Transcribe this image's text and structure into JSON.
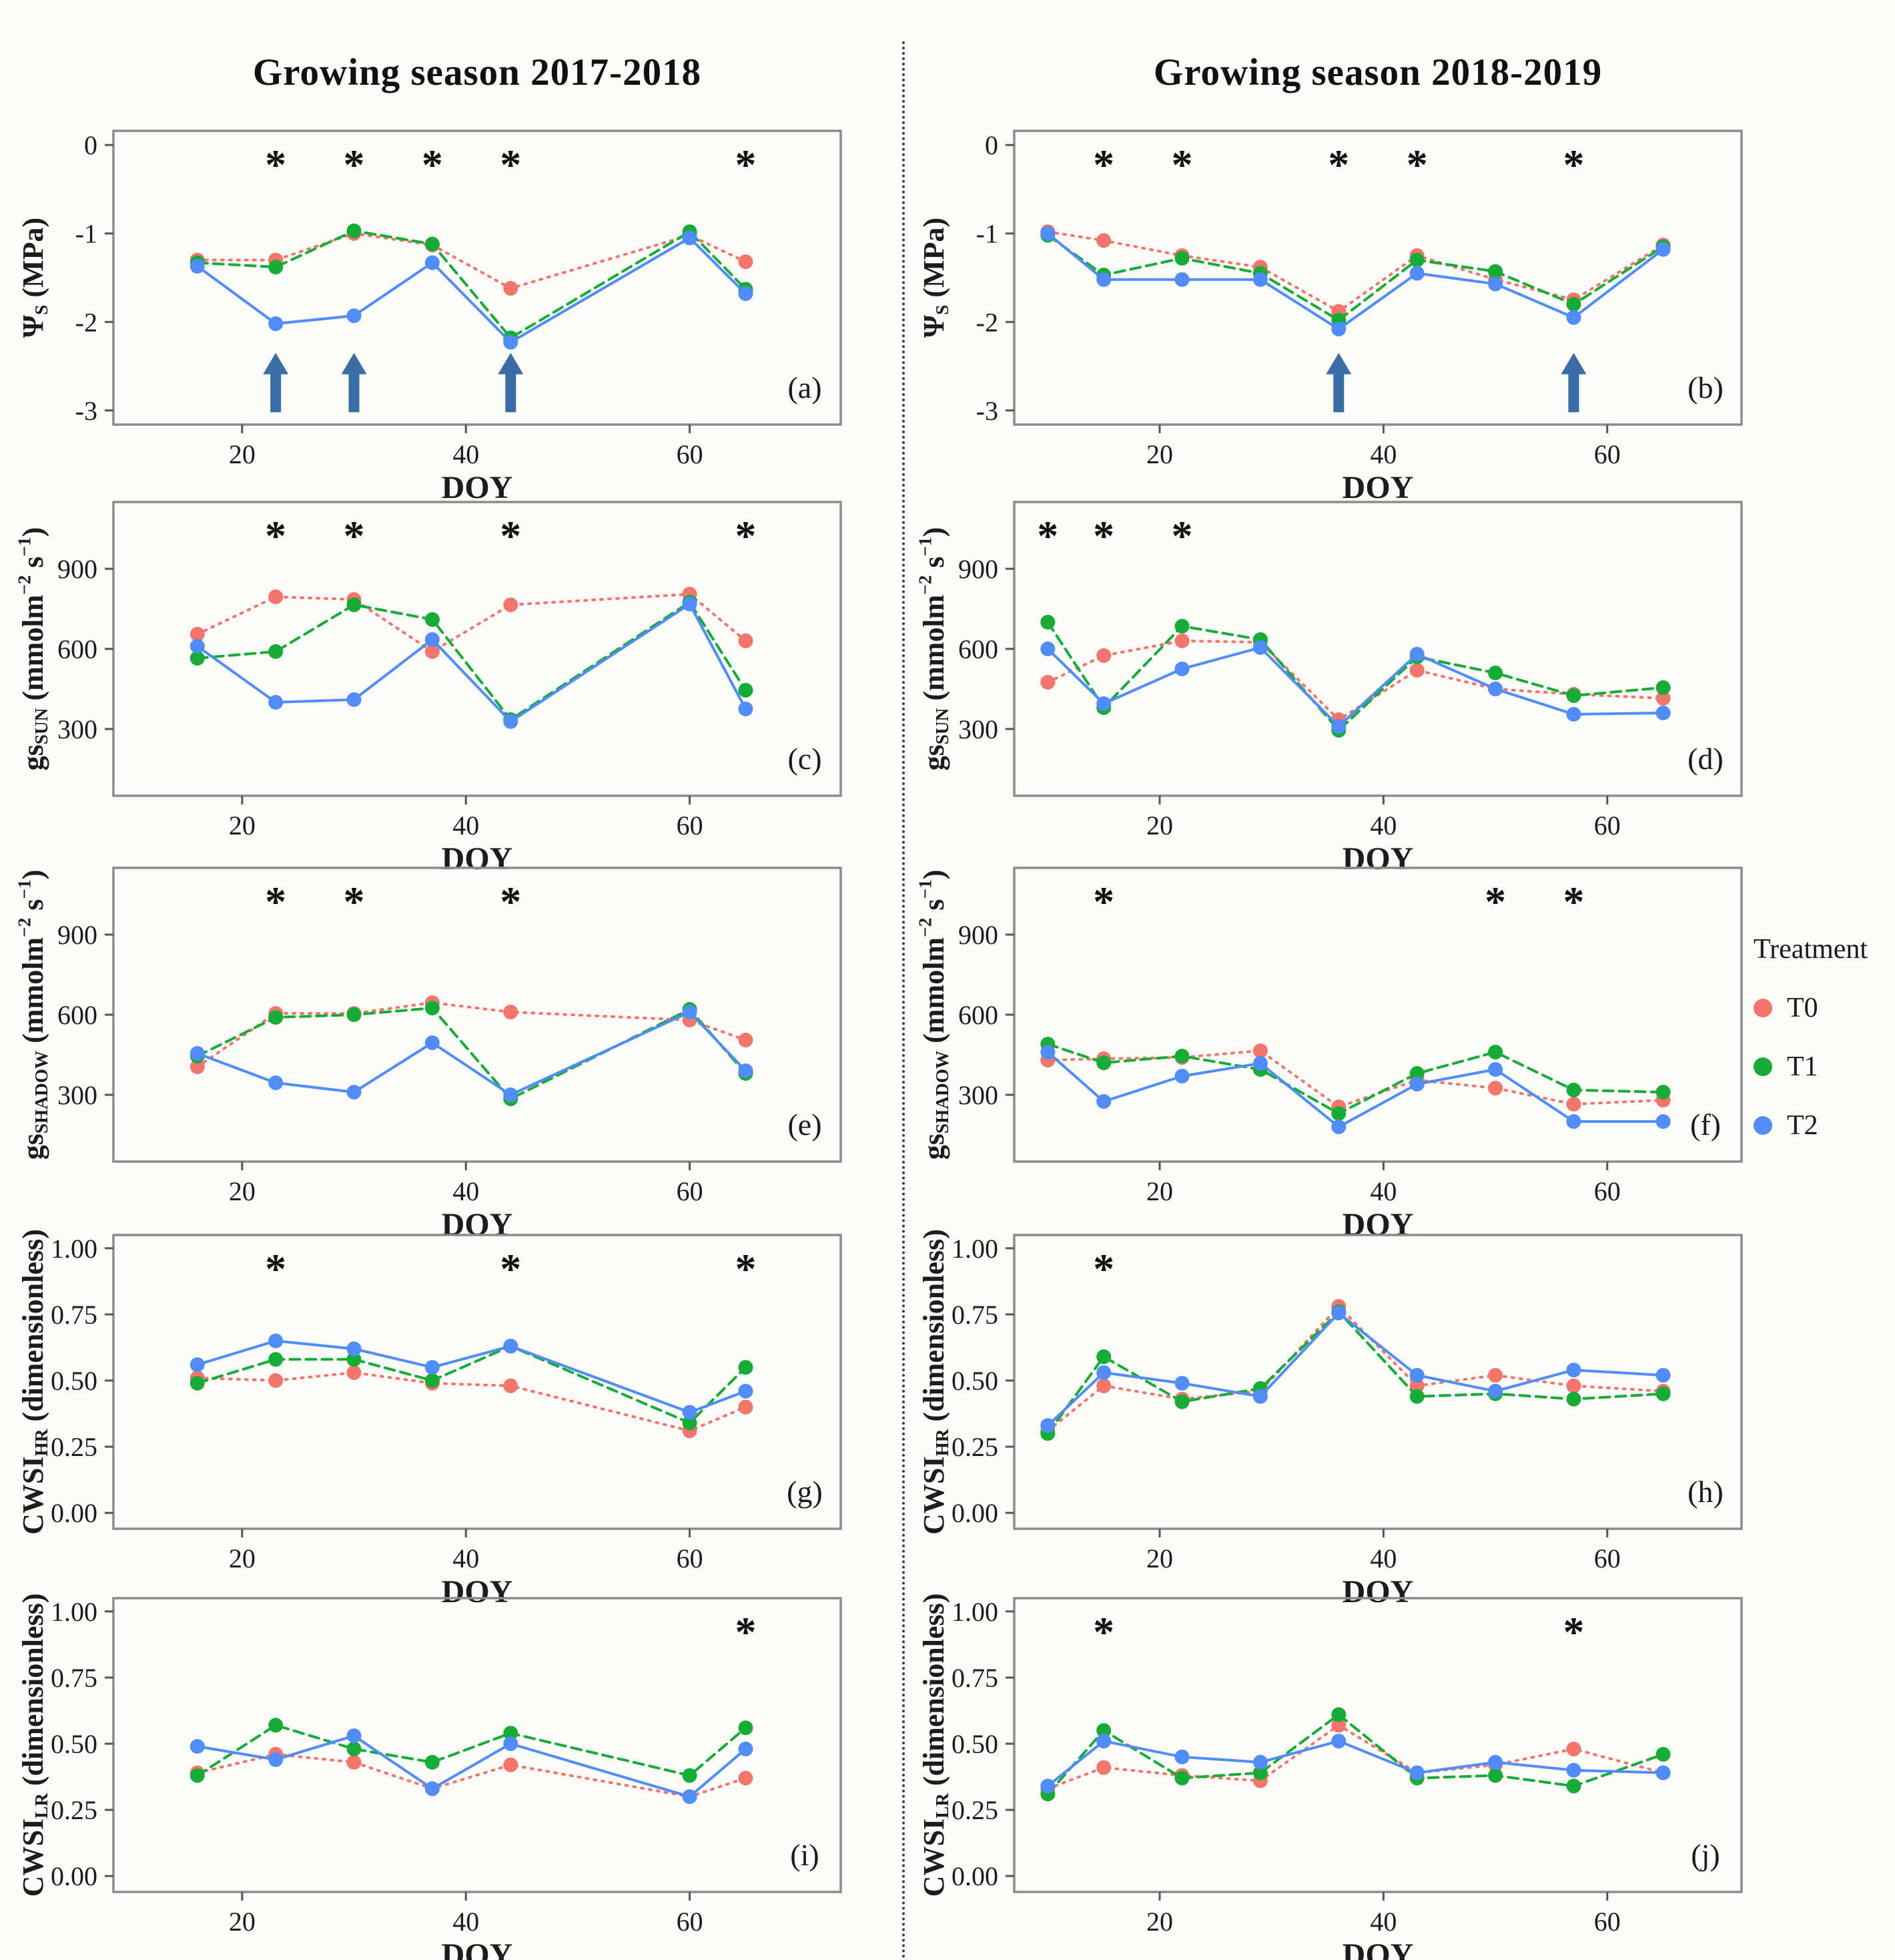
{
  "titles": {
    "left": "Growing season 2017-2018",
    "right": "Growing season 2018-2019"
  },
  "legend": {
    "title": "Treatment",
    "items": [
      {
        "label": "T0"
      },
      {
        "label": "T1"
      },
      {
        "label": "T2"
      }
    ]
  },
  "colors": {
    "T0": "#F3756B",
    "T1": "#16AC36",
    "T2": "#518DF8",
    "arrow": "#3B6DA5",
    "frame": "#8c8c8c",
    "axis_text": "#1c1c1c",
    "asterisk": "#111111"
  },
  "axis": {
    "x_label": "DOY"
  },
  "chart_data": {
    "type": "line",
    "series_names": [
      "T0",
      "T1",
      "T2"
    ],
    "x_ticks": [
      20,
      40,
      60
    ],
    "panels": [
      {
        "id": "a",
        "label": "(a)",
        "row": 1,
        "col": "left",
        "season": "2017-2018",
        "ylabel": "Ψ_S_ (MPa)",
        "y_range": [
          -3.16,
          0.16
        ],
        "y_ticks": [
          {
            "value": 0,
            "label": "0"
          },
          {
            "value": -1,
            "label": "-1"
          },
          {
            "value": -2,
            "label": "-2"
          },
          {
            "value": -3,
            "label": "-3"
          }
        ],
        "x_range": [
          8.5,
          73.5
        ],
        "x": [
          16,
          23,
          30,
          37,
          44,
          60,
          65
        ],
        "series": {
          "T0": [
            -1.3,
            -1.3,
            -1.0,
            -1.13,
            -1.62,
            -1.02,
            -1.32
          ],
          "T1": [
            -1.33,
            -1.38,
            -0.97,
            -1.12,
            -2.18,
            -0.98,
            -1.63
          ],
          "T2": [
            -1.37,
            -2.02,
            -1.93,
            -1.33,
            -2.23,
            -1.05,
            -1.68
          ]
        },
        "asterisks_x": [
          23,
          30,
          37,
          44,
          65
        ],
        "arrows_x": [
          23,
          30,
          44
        ]
      },
      {
        "id": "b",
        "label": "(b)",
        "row": 1,
        "col": "right",
        "season": "2018-2019",
        "ylabel": "Ψ_S_ (MPa)",
        "y_range": [
          -3.16,
          0.16
        ],
        "y_ticks": [
          {
            "value": 0,
            "label": "0"
          },
          {
            "value": -1,
            "label": "-1"
          },
          {
            "value": -2,
            "label": "-2"
          },
          {
            "value": -3,
            "label": "-3"
          }
        ],
        "x_range": [
          7,
          72
        ],
        "x": [
          10,
          15,
          22,
          29,
          36,
          43,
          50,
          57,
          65
        ],
        "series": {
          "T0": [
            -0.98,
            -1.08,
            -1.25,
            -1.38,
            -1.88,
            -1.25,
            -1.52,
            -1.75,
            -1.13
          ],
          "T1": [
            -1.02,
            -1.47,
            -1.28,
            -1.45,
            -1.98,
            -1.3,
            -1.43,
            -1.8,
            -1.15
          ],
          "T2": [
            -1.0,
            -1.52,
            -1.52,
            -1.52,
            -2.08,
            -1.45,
            -1.57,
            -1.95,
            -1.18
          ]
        },
        "asterisks_x": [
          15,
          22,
          36,
          43,
          57
        ],
        "arrows_x": [
          36,
          57
        ]
      },
      {
        "id": "c",
        "label": "(c)",
        "row": 2,
        "col": "left",
        "season": "2017-2018",
        "ylabel": "gs_SUN_ (mmolm^−2^ s^−1^)",
        "y_range": [
          50,
          1150
        ],
        "y_ticks": [
          {
            "value": 900,
            "label": "900"
          },
          {
            "value": 600,
            "label": "600"
          },
          {
            "value": 300,
            "label": "300"
          }
        ],
        "x_range": [
          8.5,
          73.5
        ],
        "x": [
          16,
          23,
          30,
          37,
          44,
          60,
          65
        ],
        "series": {
          "T0": [
            655,
            795,
            785,
            590,
            765,
            805,
            630
          ],
          "T1": [
            565,
            590,
            765,
            710,
            335,
            775,
            445
          ],
          "T2": [
            610,
            400,
            410,
            635,
            328,
            768,
            375
          ]
        },
        "asterisks_x": [
          23,
          30,
          44,
          65
        ],
        "arrows_x": []
      },
      {
        "id": "d",
        "label": "(d)",
        "row": 2,
        "col": "right",
        "season": "2018-2019",
        "ylabel": "gs_SUN_ (mmolm^−2^ s^−1^)",
        "y_range": [
          50,
          1150
        ],
        "y_ticks": [
          {
            "value": 900,
            "label": "900"
          },
          {
            "value": 600,
            "label": "600"
          },
          {
            "value": 300,
            "label": "300"
          }
        ],
        "x_range": [
          7,
          72
        ],
        "x": [
          10,
          15,
          22,
          29,
          36,
          43,
          50,
          57,
          65
        ],
        "series": {
          "T0": [
            475,
            575,
            630,
            625,
            335,
            520,
            450,
            430,
            415
          ],
          "T1": [
            700,
            380,
            685,
            635,
            295,
            570,
            510,
            425,
            455
          ],
          "T2": [
            600,
            395,
            525,
            605,
            310,
            580,
            450,
            355,
            360
          ]
        },
        "asterisks_x": [
          10,
          15,
          22
        ],
        "arrows_x": []
      },
      {
        "id": "e",
        "label": "(e)",
        "row": 3,
        "col": "left",
        "season": "2017-2018",
        "ylabel": "gs_SHADOW_ (mmolm^−2^ s^−1^)",
        "y_range": [
          50,
          1150
        ],
        "y_ticks": [
          {
            "value": 900,
            "label": "900"
          },
          {
            "value": 600,
            "label": "600"
          },
          {
            "value": 300,
            "label": "300"
          }
        ],
        "x_range": [
          8.5,
          73.5
        ],
        "x": [
          16,
          23,
          30,
          37,
          44,
          60,
          65
        ],
        "series": {
          "T0": [
            405,
            605,
            605,
            645,
            610,
            580,
            505
          ],
          "T1": [
            445,
            590,
            600,
            625,
            285,
            620,
            380
          ],
          "T2": [
            455,
            345,
            310,
            495,
            300,
            610,
            390
          ]
        },
        "asterisks_x": [
          23,
          30,
          44
        ],
        "arrows_x": []
      },
      {
        "id": "f",
        "label": "(f)",
        "row": 3,
        "col": "right",
        "season": "2018-2019",
        "ylabel": "gs_SHADOW_ (mmolm^−2^ s^−1^)",
        "y_range": [
          50,
          1150
        ],
        "y_ticks": [
          {
            "value": 900,
            "label": "900"
          },
          {
            "value": 600,
            "label": "600"
          },
          {
            "value": 300,
            "label": "300"
          }
        ],
        "x_range": [
          7,
          72
        ],
        "x": [
          10,
          15,
          22,
          29,
          36,
          43,
          50,
          57,
          65
        ],
        "series": {
          "T0": [
            430,
            435,
            440,
            465,
            255,
            355,
            325,
            265,
            280
          ],
          "T1": [
            490,
            420,
            445,
            395,
            230,
            380,
            460,
            318,
            310
          ],
          "T2": [
            460,
            275,
            370,
            418,
            180,
            340,
            395,
            200,
            200
          ]
        },
        "asterisks_x": [
          15,
          50,
          57
        ],
        "arrows_x": []
      },
      {
        "id": "g",
        "label": "(g)",
        "row": 4,
        "col": "left",
        "season": "2017-2018",
        "ylabel": "CWSI_HR_ (dimensionless)",
        "y_range": [
          -0.06,
          1.05
        ],
        "y_ticks": [
          {
            "value": 1.0,
            "label": "1.00"
          },
          {
            "value": 0.75,
            "label": "0.75"
          },
          {
            "value": 0.5,
            "label": "0.50"
          },
          {
            "value": 0.25,
            "label": "0.25"
          },
          {
            "value": 0.0,
            "label": "0.00"
          }
        ],
        "x_range": [
          8.5,
          73.5
        ],
        "x": [
          16,
          23,
          30,
          37,
          44,
          60,
          65
        ],
        "series": {
          "T0": [
            0.51,
            0.5,
            0.53,
            0.49,
            0.48,
            0.31,
            0.4
          ],
          "T1": [
            0.49,
            0.58,
            0.58,
            0.5,
            0.63,
            0.34,
            0.55
          ],
          "T2": [
            0.56,
            0.65,
            0.62,
            0.55,
            0.63,
            0.38,
            0.46
          ]
        },
        "asterisks_x": [
          23,
          44,
          65
        ],
        "arrows_x": []
      },
      {
        "id": "h",
        "label": "(h)",
        "row": 4,
        "col": "right",
        "season": "2018-2019",
        "ylabel": "CWSI_HR_ (dimensionless)",
        "y_range": [
          -0.06,
          1.05
        ],
        "y_ticks": [
          {
            "value": 1.0,
            "label": "1.00"
          },
          {
            "value": 0.75,
            "label": "0.75"
          },
          {
            "value": 0.5,
            "label": "0.50"
          },
          {
            "value": 0.25,
            "label": "0.25"
          },
          {
            "value": 0.0,
            "label": "0.00"
          }
        ],
        "x_range": [
          7,
          72
        ],
        "x": [
          10,
          15,
          22,
          29,
          36,
          43,
          50,
          57,
          65
        ],
        "series": {
          "T0": [
            0.31,
            0.48,
            0.43,
            0.46,
            0.78,
            0.48,
            0.52,
            0.48,
            0.46
          ],
          "T1": [
            0.3,
            0.59,
            0.42,
            0.47,
            0.76,
            0.44,
            0.45,
            0.43,
            0.45
          ],
          "T2": [
            0.33,
            0.53,
            0.49,
            0.44,
            0.755,
            0.52,
            0.46,
            0.54,
            0.52
          ]
        },
        "asterisks_x": [
          15
        ],
        "arrows_x": []
      },
      {
        "id": "i",
        "label": "(i)",
        "row": 5,
        "col": "left",
        "season": "2017-2018",
        "ylabel": "CWSI_LR_ (dimensionless)",
        "y_range": [
          -0.06,
          1.05
        ],
        "y_ticks": [
          {
            "value": 1.0,
            "label": "1.00"
          },
          {
            "value": 0.75,
            "label": "0.75"
          },
          {
            "value": 0.5,
            "label": "0.50"
          },
          {
            "value": 0.25,
            "label": "0.25"
          },
          {
            "value": 0.0,
            "label": "0.00"
          }
        ],
        "x_range": [
          8.5,
          73.5
        ],
        "x": [
          16,
          23,
          30,
          37,
          44,
          60,
          65
        ],
        "series": {
          "T0": [
            0.39,
            0.46,
            0.43,
            0.33,
            0.42,
            0.3,
            0.37
          ],
          "T1": [
            0.38,
            0.57,
            0.48,
            0.43,
            0.54,
            0.38,
            0.56
          ],
          "T2": [
            0.49,
            0.44,
            0.53,
            0.33,
            0.5,
            0.3,
            0.48
          ]
        },
        "asterisks_x": [
          65
        ],
        "arrows_x": []
      },
      {
        "id": "j",
        "label": "(j)",
        "row": 5,
        "col": "right",
        "season": "2018-2019",
        "ylabel": "CWSI_LR_ (dimensionless)",
        "y_range": [
          -0.06,
          1.05
        ],
        "y_ticks": [
          {
            "value": 1.0,
            "label": "1.00"
          },
          {
            "value": 0.75,
            "label": "0.75"
          },
          {
            "value": 0.5,
            "label": "0.50"
          },
          {
            "value": 0.25,
            "label": "0.25"
          },
          {
            "value": 0.0,
            "label": "0.00"
          }
        ],
        "x_range": [
          7,
          72
        ],
        "x": [
          10,
          15,
          22,
          29,
          36,
          43,
          50,
          57,
          65
        ],
        "series": {
          "T0": [
            0.33,
            0.41,
            0.38,
            0.36,
            0.57,
            0.39,
            0.42,
            0.48,
            0.39
          ],
          "T1": [
            0.31,
            0.55,
            0.37,
            0.39,
            0.61,
            0.37,
            0.38,
            0.34,
            0.46
          ],
          "T2": [
            0.34,
            0.51,
            0.45,
            0.43,
            0.51,
            0.39,
            0.43,
            0.4,
            0.39
          ]
        },
        "asterisks_x": [
          15,
          57
        ],
        "arrows_x": []
      }
    ]
  }
}
